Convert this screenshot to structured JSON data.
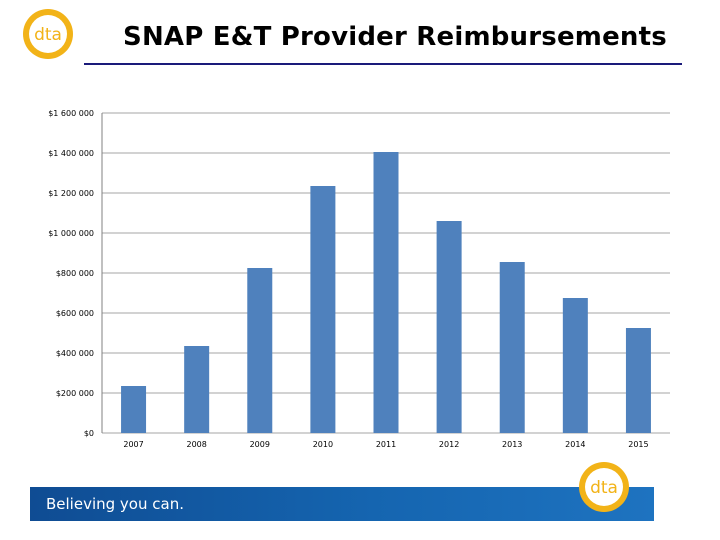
{
  "header": {
    "title": "SNAP E&T Provider Reimbursements",
    "logo_text": "dta",
    "logo_color": "#f2b318"
  },
  "footer": {
    "tagline": "Believing you can.",
    "logo_text": "dta",
    "banner_color": "#1565b0"
  },
  "chart_data": {
    "type": "bar",
    "categories": [
      "2007",
      "2008",
      "2009",
      "2010",
      "2011",
      "2012",
      "2013",
      "2014",
      "2015"
    ],
    "values": [
      235000,
      435000,
      825000,
      1235000,
      1405000,
      1060000,
      855000,
      675000,
      525000
    ],
    "ylim": [
      0,
      1600000
    ],
    "yticks": [
      0,
      200000,
      400000,
      600000,
      800000,
      1000000,
      1200000,
      1400000,
      1600000
    ],
    "ytick_labels": [
      "$0",
      "$200 000",
      "$400 000",
      "$600 000",
      "$800 000",
      "$1 000 000",
      "$1 200 000",
      "$1 400 000",
      "$1 600 000"
    ],
    "grid": true,
    "bar_color": "#4f81bd"
  }
}
